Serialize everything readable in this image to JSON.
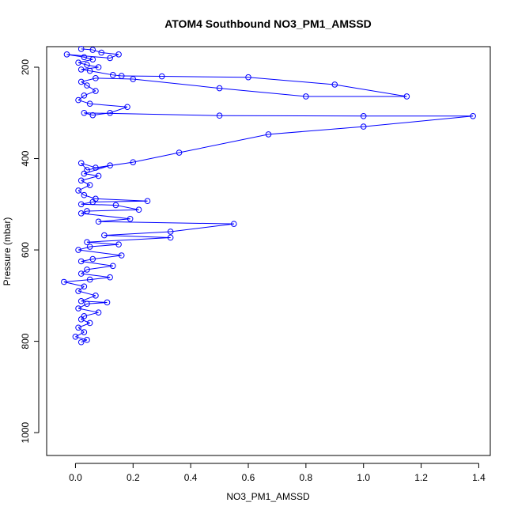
{
  "chart_data": {
    "type": "scatter",
    "title": "ATOM4 Southbound NO3_PM1_AMSSD",
    "xlabel": "NO3_PM1_AMSSD",
    "ylabel": "Pressure (mbar)",
    "xlim": [
      -0.1,
      1.44
    ],
    "ylim": [
      1050,
      155
    ],
    "y_reversed": true,
    "x_ticks": [
      "0.0",
      "0.2",
      "0.4",
      "0.6",
      "0.8",
      "1.0",
      "1.2",
      "1.4"
    ],
    "y_ticks": [
      "200",
      "400",
      "600",
      "800",
      "1000"
    ],
    "x_tick_values": [
      0,
      0.2,
      0.4,
      0.6,
      0.8,
      1.0,
      1.2,
      1.4
    ],
    "y_tick_values": [
      200,
      400,
      600,
      800,
      1000
    ],
    "series_color": "#0000ff",
    "series": [
      {
        "values": [
          [
            0.02,
            160
          ],
          [
            0.06,
            162
          ],
          [
            0.09,
            168
          ],
          [
            0.15,
            172
          ],
          [
            0.12,
            180
          ],
          [
            -0.03,
            172
          ],
          [
            0.03,
            178
          ],
          [
            0.06,
            183
          ],
          [
            0.01,
            190
          ],
          [
            0.04,
            195
          ],
          [
            0.08,
            200
          ],
          [
            0.02,
            205
          ],
          [
            0.05,
            208
          ],
          [
            0.13,
            217
          ],
          [
            0.16,
            219
          ],
          [
            0.3,
            220
          ],
          [
            0.6,
            222
          ],
          [
            0.9,
            238
          ],
          [
            1.15,
            264
          ],
          [
            0.8,
            264
          ],
          [
            0.5,
            246
          ],
          [
            0.2,
            226
          ],
          [
            0.07,
            224
          ],
          [
            0.02,
            232
          ],
          [
            0.04,
            240
          ],
          [
            0.07,
            252
          ],
          [
            0.03,
            262
          ],
          [
            0.01,
            272
          ],
          [
            0.05,
            280
          ],
          [
            0.18,
            287
          ],
          [
            0.12,
            300
          ],
          [
            0.06,
            305
          ],
          [
            0.03,
            300
          ],
          [
            0.5,
            306
          ],
          [
            1.0,
            307
          ],
          [
            1.38,
            307
          ],
          [
            1.0,
            330
          ],
          [
            0.67,
            347
          ],
          [
            0.36,
            387
          ],
          [
            0.2,
            408
          ],
          [
            0.07,
            420
          ],
          [
            0.02,
            410
          ],
          [
            0.04,
            425
          ],
          [
            0.12,
            415
          ],
          [
            0.03,
            433
          ],
          [
            0.08,
            438
          ],
          [
            0.02,
            448
          ],
          [
            0.05,
            458
          ],
          [
            0.01,
            470
          ],
          [
            0.03,
            480
          ],
          [
            0.07,
            488
          ],
          [
            0.25,
            493
          ],
          [
            0.06,
            495
          ],
          [
            0.02,
            500
          ],
          [
            0.14,
            502
          ],
          [
            0.22,
            512
          ],
          [
            0.04,
            515
          ],
          [
            0.02,
            520
          ],
          [
            0.19,
            532
          ],
          [
            0.08,
            538
          ],
          [
            0.55,
            543
          ],
          [
            0.33,
            560
          ],
          [
            0.1,
            568
          ],
          [
            0.33,
            573
          ],
          [
            0.04,
            583
          ],
          [
            0.15,
            588
          ],
          [
            0.05,
            593
          ],
          [
            0.01,
            600
          ],
          [
            0.16,
            612
          ],
          [
            0.06,
            620
          ],
          [
            0.02,
            625
          ],
          [
            0.13,
            635
          ],
          [
            0.04,
            643
          ],
          [
            0.02,
            652
          ],
          [
            0.12,
            660
          ],
          [
            0.05,
            665
          ],
          [
            -0.04,
            670
          ],
          [
            0.03,
            680
          ],
          [
            0.01,
            690
          ],
          [
            0.07,
            700
          ],
          [
            0.02,
            712
          ],
          [
            0.11,
            715
          ],
          [
            0.04,
            718
          ],
          [
            0.01,
            728
          ],
          [
            0.08,
            737
          ],
          [
            0.03,
            745
          ],
          [
            0.02,
            752
          ],
          [
            0.05,
            760
          ],
          [
            0.01,
            770
          ],
          [
            0.03,
            780
          ],
          [
            0.0,
            790
          ],
          [
            0.04,
            797
          ],
          [
            0.02,
            802
          ]
        ]
      }
    ]
  }
}
